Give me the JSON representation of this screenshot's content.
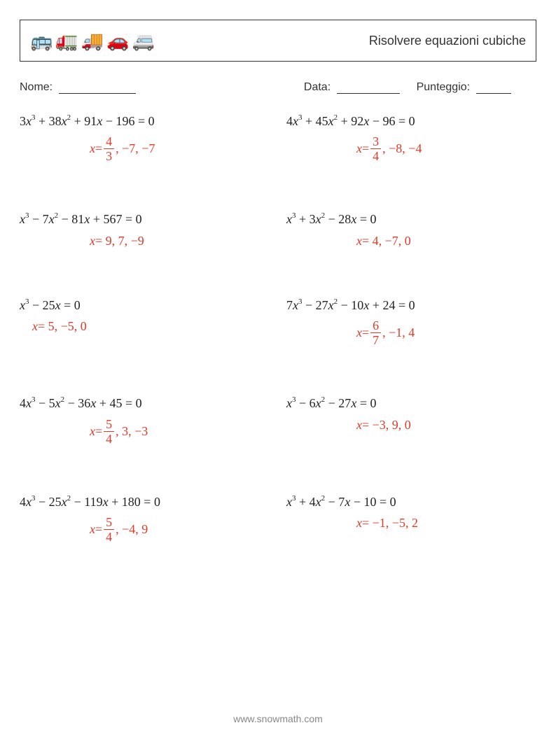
{
  "header": {
    "title": "Risolvere equazioni cubiche",
    "vehicles": [
      "🚌",
      "🚛",
      "🚚",
      "🚗",
      "🚐"
    ]
  },
  "info": {
    "name_label": "Nome:",
    "date_label": "Data:",
    "score_label": "Punteggio:",
    "name_blank_width": 110,
    "date_blank_width": 90,
    "score_blank_width": 50
  },
  "styling": {
    "answer_color": "#e23a27",
    "text_color": "#222222",
    "border_color": "#333333",
    "font_family_math": "Times New Roman",
    "font_size_eqn": 18,
    "font_size_title": 18,
    "grid_row_gap": 70
  },
  "problems": [
    {
      "equation_parts": {
        "a": "3",
        "b": "+ 38",
        "c": "+ 91",
        "d": "− 196",
        "show_a": true,
        "show_b": true,
        "show_c": true,
        "show_d": true
      },
      "answer": {
        "prefix": "x = ",
        "frac": {
          "num": "4",
          "den": "3"
        },
        "rest": ", −7, −7",
        "indent": true
      }
    },
    {
      "equation_parts": {
        "a": "4",
        "b": "+ 45",
        "c": "+ 92",
        "d": "− 96",
        "show_a": true,
        "show_b": true,
        "show_c": true,
        "show_d": true
      },
      "answer": {
        "prefix": "x = ",
        "frac": {
          "num": "3",
          "den": "4"
        },
        "rest": ", −8, −4",
        "indent": true
      }
    },
    {
      "equation_parts": {
        "a": "",
        "b": "− 7",
        "c": "− 81",
        "d": "+ 567",
        "show_a": false,
        "show_b": true,
        "show_c": true,
        "show_d": true
      },
      "answer": {
        "prefix": "x = 9, 7, −9",
        "frac": null,
        "rest": "",
        "indent": true
      }
    },
    {
      "equation_parts": {
        "a": "",
        "b": "+ 3",
        "c": "− 28",
        "d": "",
        "show_a": false,
        "show_b": true,
        "show_c": true,
        "show_d": false
      },
      "answer": {
        "prefix": "x = 4, −7, 0",
        "frac": null,
        "rest": "",
        "indent": true
      }
    },
    {
      "equation_parts": {
        "a": "",
        "b": "",
        "c": "− 25",
        "d": "",
        "show_a": false,
        "show_b": false,
        "show_c": true,
        "show_d": false
      },
      "answer": {
        "prefix": "x = 5, −5, 0",
        "frac": null,
        "rest": "",
        "indent": false
      }
    },
    {
      "equation_parts": {
        "a": "7",
        "b": "− 27",
        "c": "− 10",
        "d": "+ 24",
        "show_a": true,
        "show_b": true,
        "show_c": true,
        "show_d": true
      },
      "answer": {
        "prefix": "x = ",
        "frac": {
          "num": "6",
          "den": "7"
        },
        "rest": ", −1, 4",
        "indent": true
      }
    },
    {
      "equation_parts": {
        "a": "4",
        "b": "− 5",
        "c": "− 36",
        "d": "+ 45",
        "show_a": true,
        "show_b": true,
        "show_c": true,
        "show_d": true
      },
      "answer": {
        "prefix": "x = ",
        "frac": {
          "num": "5",
          "den": "4"
        },
        "rest": ", 3, −3",
        "indent": true
      }
    },
    {
      "equation_parts": {
        "a": "",
        "b": "− 6",
        "c": "− 27",
        "d": "",
        "show_a": false,
        "show_b": true,
        "show_c": true,
        "show_d": false
      },
      "answer": {
        "prefix": "x = −3, 9, 0",
        "frac": null,
        "rest": "",
        "indent": true
      }
    },
    {
      "equation_parts": {
        "a": "4",
        "b": "− 25",
        "c": "− 119",
        "d": "+ 180",
        "show_a": true,
        "show_b": true,
        "show_c": true,
        "show_d": true
      },
      "answer": {
        "prefix": "x = ",
        "frac": {
          "num": "5",
          "den": "4"
        },
        "rest": ", −4, 9",
        "indent": true
      }
    },
    {
      "equation_parts": {
        "a": "",
        "b": "+ 4",
        "c": "− 7",
        "d": "− 10",
        "show_a": false,
        "show_b": true,
        "show_c": true,
        "show_d": true
      },
      "answer": {
        "prefix": "x = −1, −5, 2",
        "frac": null,
        "rest": "",
        "indent": true
      }
    }
  ],
  "footer": "www.snowmath.com"
}
